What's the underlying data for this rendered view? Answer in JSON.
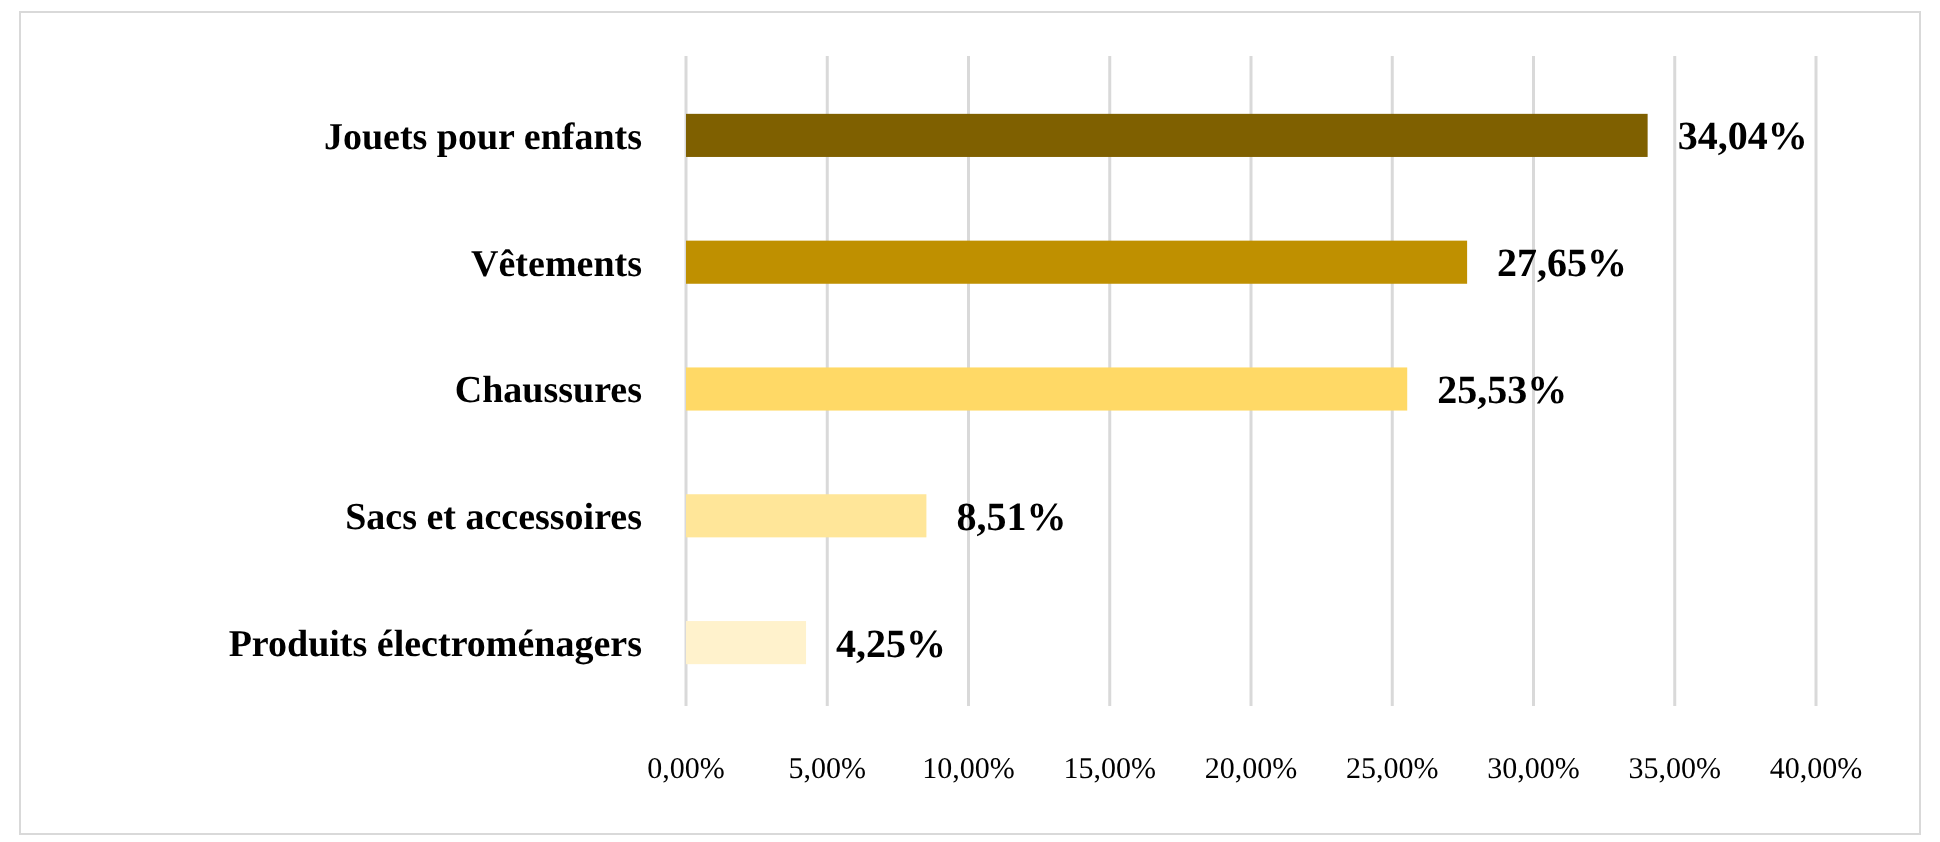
{
  "chart_data": {
    "type": "bar",
    "orientation": "horizontal",
    "categories": [
      "Jouets pour enfants",
      "Vêtements",
      "Chaussures",
      "Sacs et accessoires",
      "Produits électroménagers"
    ],
    "values": [
      34.04,
      27.65,
      25.53,
      8.51,
      4.25
    ],
    "colors": [
      "#7f6000",
      "#bf9000",
      "#ffd966",
      "#ffe699",
      "#fff2cc"
    ],
    "value_labels": [
      "34,04%",
      "27,65%",
      "25,53%",
      "8,51%",
      "4,25%"
    ],
    "xlim": [
      0,
      40
    ],
    "xticks": [
      {
        "value": 0,
        "label": "0,00%"
      },
      {
        "value": 5,
        "label": "5,00%"
      },
      {
        "value": 10,
        "label": "10,00%"
      },
      {
        "value": 15,
        "label": "15,00%"
      },
      {
        "value": 20,
        "label": "20,00%"
      },
      {
        "value": 25,
        "label": "25,00%"
      },
      {
        "value": 30,
        "label": "30,00%"
      },
      {
        "value": 35,
        "label": "35,00%"
      },
      {
        "value": 40,
        "label": "40,00%"
      }
    ],
    "grid": "x"
  }
}
